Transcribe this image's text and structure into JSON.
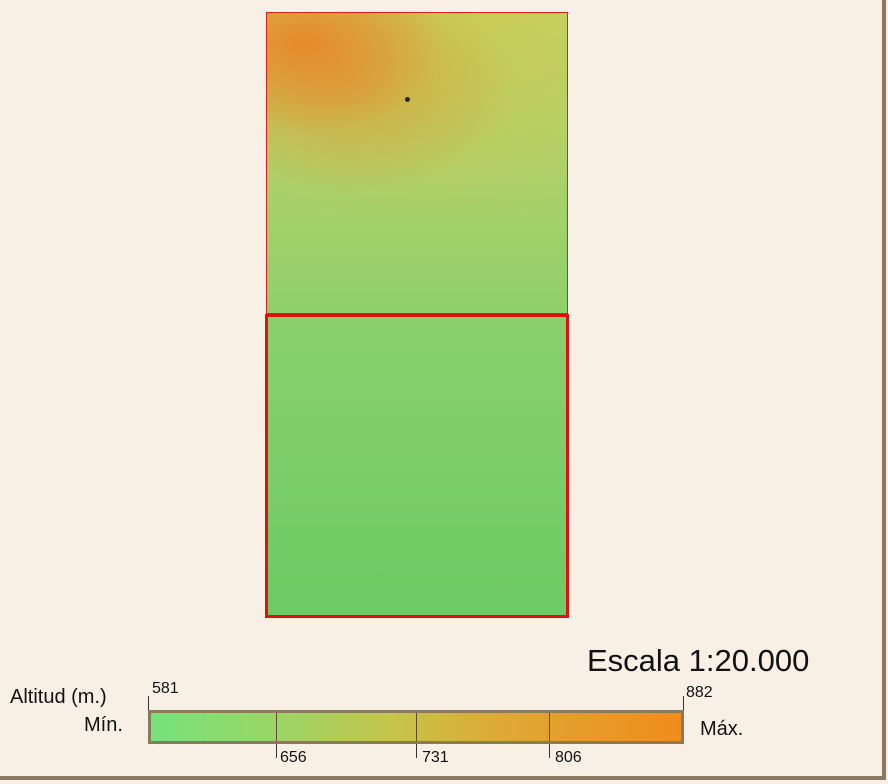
{
  "map": {
    "scale_text": "Escala 1:20.000"
  },
  "legend": {
    "title": "Altitud (m.)",
    "min_label": "Mín.",
    "max_label": "Máx.",
    "min_value": "581",
    "max_value": "882",
    "ticks": [
      "656",
      "731",
      "806"
    ],
    "colors": {
      "low": "#76e27c",
      "mid": "#c4c54c",
      "high": "#f08c1c"
    }
  },
  "colors": {
    "frame_border": "#e01010",
    "background": "#f8f0e4"
  }
}
